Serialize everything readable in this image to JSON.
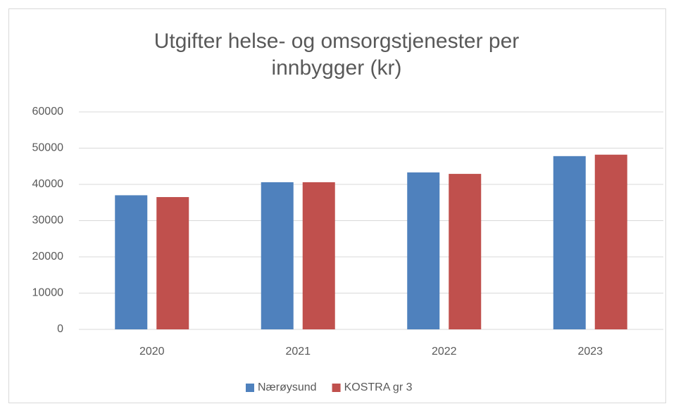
{
  "chart_data": {
    "type": "bar",
    "title": "Utgifter helse- og omsorgstjenester per innbygger (kr)",
    "categories": [
      "2020",
      "2021",
      "2022",
      "2023"
    ],
    "series": [
      {
        "name": "Nærøysund",
        "color": "#4f81bd",
        "values": [
          37000,
          40600,
          43300,
          47800
        ]
      },
      {
        "name": "KOSTRA gr 3",
        "color": "#c0504d",
        "values": [
          36500,
          40600,
          42900,
          48200
        ]
      }
    ],
    "ylim": [
      0,
      60000
    ],
    "yticks": [
      0,
      10000,
      20000,
      30000,
      40000,
      50000,
      60000
    ],
    "grid": true,
    "legend": "bottom"
  }
}
